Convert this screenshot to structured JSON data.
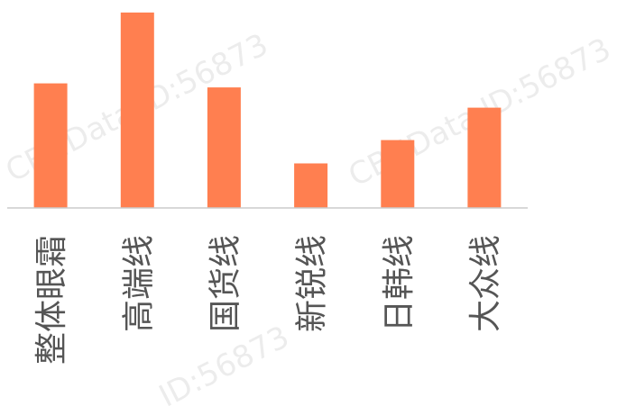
{
  "watermark": {
    "text_1": "CBNData ID:56873",
    "text_2": "CBNData ID:56873",
    "text_3": "ID:56873"
  },
  "chart_data": {
    "type": "bar",
    "categories": [
      "整体眼霜",
      "高端线",
      "国货线",
      "新锐线",
      "日韩线",
      "大众线"
    ],
    "values": [
      123,
      193,
      119,
      44,
      67,
      99
    ],
    "ylim": [
      0,
      200
    ],
    "bar_color": "#FF7F50",
    "axis_color": "#CCCCCC",
    "label_color": "#555555",
    "grid": false,
    "legend": "none"
  }
}
